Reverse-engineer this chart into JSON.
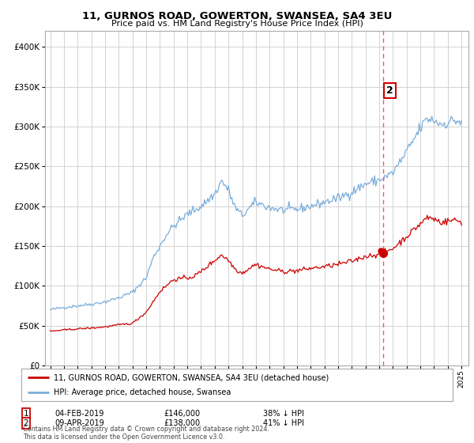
{
  "title": "11, GURNOS ROAD, GOWERTON, SWANSEA, SA4 3EU",
  "subtitle": "Price paid vs. HM Land Registry's House Price Index (HPI)",
  "legend_line1": "11, GURNOS ROAD, GOWERTON, SWANSEA, SA4 3EU (detached house)",
  "legend_line2": "HPI: Average price, detached house, Swansea",
  "transaction1_date": "04-FEB-2019",
  "transaction1_price": "£146,000",
  "transaction1_hpi": "38% ↓ HPI",
  "transaction2_date": "09-APR-2019",
  "transaction2_price": "£138,000",
  "transaction2_hpi": "41% ↓ HPI",
  "footer": "Contains HM Land Registry data © Crown copyright and database right 2024.\nThis data is licensed under the Open Government Licence v3.0.",
  "red_line_color": "#cc0000",
  "blue_line_color": "#7aaddb",
  "vline_color": "#ff5555",
  "marker_color": "#cc0000",
  "grid_color": "#cccccc",
  "bg_color": "#ffffff",
  "ylim": [
    0,
    420000
  ],
  "yticks": [
    0,
    50000,
    100000,
    150000,
    200000,
    250000,
    300000,
    350000,
    400000
  ],
  "start_year": 1995,
  "end_year": 2025,
  "transaction1_x": 2019.09,
  "transaction2_x": 2019.27,
  "blue_key_points": {
    "1995.0": 70000,
    "1996.0": 73000,
    "1997.0": 75000,
    "1998.0": 77000,
    "1999.0": 80000,
    "2000.0": 85000,
    "2001.0": 92000,
    "2002.0": 110000,
    "2002.5": 135000,
    "2003.5": 165000,
    "2004.0": 175000,
    "2005.0": 190000,
    "2006.0": 200000,
    "2007.0": 215000,
    "2007.5": 232000,
    "2008.0": 220000,
    "2008.5": 198000,
    "2009.0": 188000,
    "2009.5": 197000,
    "2010.0": 205000,
    "2011.0": 198000,
    "2012.0": 195000,
    "2013.0": 196000,
    "2014.0": 200000,
    "2015.0": 205000,
    "2016.0": 210000,
    "2017.0": 218000,
    "2018.0": 228000,
    "2019.0": 233000,
    "2019.5": 237000,
    "2020.0": 242000,
    "2021.0": 268000,
    "2022.0": 298000,
    "2022.5": 310000,
    "2023.0": 308000,
    "2023.5": 303000,
    "2024.0": 305000,
    "2024.5": 308000,
    "2025.0": 305000
  },
  "red_key_points": {
    "1995.0": 43000,
    "1996.0": 44500,
    "1997.0": 46000,
    "1998.0": 47000,
    "1999.0": 48500,
    "2000.0": 51000,
    "2001.0": 53000,
    "2002.0": 67000,
    "2003.0": 93000,
    "2004.0": 108000,
    "2005.0": 110000,
    "2005.5": 112000,
    "2006.0": 118000,
    "2007.0": 132000,
    "2007.5": 139000,
    "2008.0": 132000,
    "2008.5": 121000,
    "2009.0": 116000,
    "2009.5": 122000,
    "2010.0": 127000,
    "2011.0": 121000,
    "2012.0": 118000,
    "2013.0": 119000,
    "2014.0": 122000,
    "2015.0": 124000,
    "2016.0": 127000,
    "2017.0": 131000,
    "2018.0": 137000,
    "2019.0": 140000,
    "2019.25": 142000,
    "2019.5": 143000,
    "2020.0": 147000,
    "2021.0": 162000,
    "2022.0": 178000,
    "2022.5": 186000,
    "2023.0": 184000,
    "2023.5": 180000,
    "2024.0": 181000,
    "2024.5": 183000,
    "2025.0": 180000
  }
}
